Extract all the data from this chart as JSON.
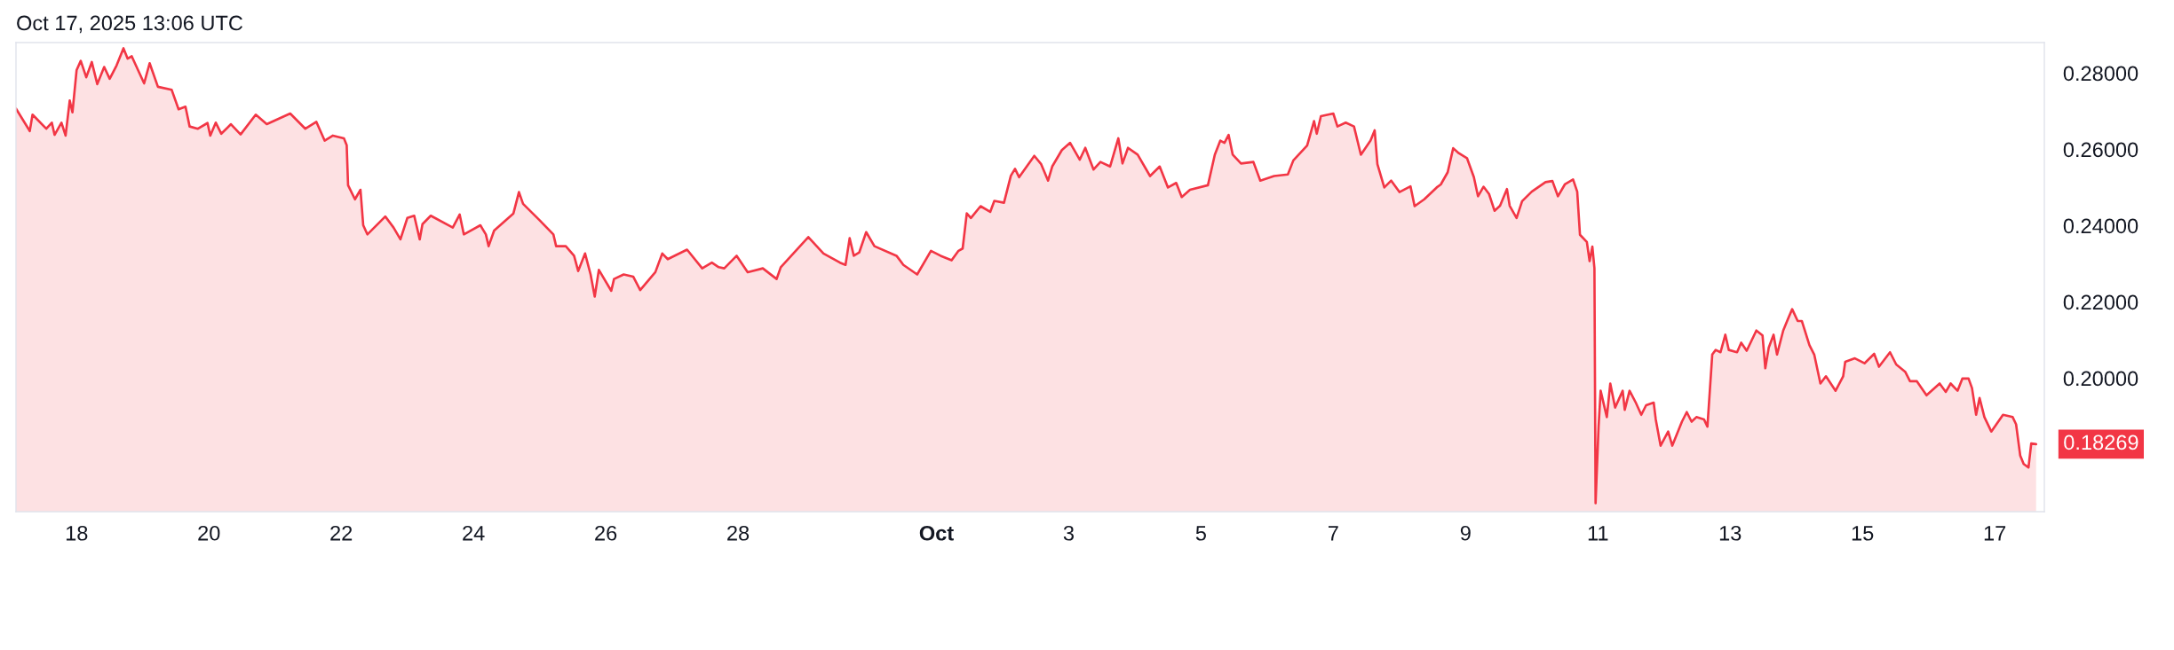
{
  "chart_data": {
    "type": "area",
    "annotations": [
      "Oct 17, 2025 13:06 UTC",
      {
        "text": "0.18269",
        "x": "2025-10-17T15:00",
        "y": 0.18269
      }
    ],
    "xlim": [
      "2025-09-17T02:00",
      "2025-10-17T18:00"
    ],
    "ylim": [
      0.165,
      0.288
    ],
    "xticks": [
      {
        "value": "2025-09-18",
        "label": "18"
      },
      {
        "value": "2025-09-20",
        "label": "20"
      },
      {
        "value": "2025-09-22",
        "label": "22"
      },
      {
        "value": "2025-09-24",
        "label": "24"
      },
      {
        "value": "2025-09-26",
        "label": "26"
      },
      {
        "value": "2025-09-28",
        "label": "28"
      },
      {
        "value": "2025-10-01",
        "label": "Oct"
      },
      {
        "value": "2025-10-03",
        "label": "3"
      },
      {
        "value": "2025-10-05",
        "label": "5"
      },
      {
        "value": "2025-10-07",
        "label": "7"
      },
      {
        "value": "2025-10-09",
        "label": "9"
      },
      {
        "value": "2025-10-11",
        "label": "11"
      },
      {
        "value": "2025-10-13",
        "label": "13"
      },
      {
        "value": "2025-10-15",
        "label": "15"
      },
      {
        "value": "2025-10-17",
        "label": "17"
      }
    ],
    "yticks": [
      {
        "value": 0.2,
        "label": "0.20000"
      },
      {
        "value": 0.22,
        "label": "0.22000"
      },
      {
        "value": 0.24,
        "label": "0.24000"
      },
      {
        "value": 0.26,
        "label": "0.26000"
      },
      {
        "value": 0.28,
        "label": "0.28000"
      }
    ],
    "grid": false,
    "series": [
      {
        "color": "#f23645",
        "x": [
          "2025-09-17T02:00",
          "2025-09-17T07:00",
          "2025-09-17T08:00",
          "2025-09-17T13:00",
          "2025-09-17T15:00",
          "2025-09-17T16:00",
          "2025-09-17T18:30",
          "2025-09-17T20:00",
          "2025-09-17T21:30",
          "2025-09-17T22:30",
          "2025-09-18T00:00",
          "2025-09-18T01:30",
          "2025-09-18T03:30",
          "2025-09-18T05:30",
          "2025-09-18T07:30",
          "2025-09-18T10:00",
          "2025-09-18T12:00",
          "2025-09-18T14:30",
          "2025-09-18T17:00",
          "2025-09-18T18:30",
          "2025-09-18T20:00",
          "2025-09-19T00:30",
          "2025-09-19T02:30",
          "2025-09-19T05:30",
          "2025-09-19T10:30",
          "2025-09-19T13:00",
          "2025-09-19T15:30",
          "2025-09-19T17:00",
          "2025-09-19T20:00",
          "2025-09-19T23:30",
          "2025-09-20T00:30",
          "2025-09-20T02:30",
          "2025-09-20T04:30",
          "2025-09-20T08:00",
          "2025-09-20T11:30",
          "2025-09-20T17:00",
          "2025-09-20T21:00",
          "2025-09-21T05:30",
          "2025-09-21T11:00",
          "2025-09-21T15:00",
          "2025-09-21T18:00",
          "2025-09-21T21:00",
          "2025-09-22T01:00",
          "2025-09-22T02:00",
          "2025-09-22T02:30",
          "2025-09-22T05:00",
          "2025-09-22T07:00",
          "2025-09-22T08:00",
          "2025-09-22T09:30",
          "2025-09-22T12:00",
          "2025-09-22T16:00",
          "2025-09-22T19:00",
          "2025-09-22T21:30",
          "2025-09-23T00:00",
          "2025-09-23T02:30",
          "2025-09-23T04:30",
          "2025-09-23T05:30",
          "2025-09-23T08:30",
          "2025-09-23T16:30",
          "2025-09-23T19:00",
          "2025-09-23T20:30",
          "2025-09-24T02:30",
          "2025-09-24T04:30",
          "2025-09-24T05:30",
          "2025-09-24T07:30",
          "2025-09-24T14:30",
          "2025-09-24T16:30",
          "2025-09-24T18:00",
          "2025-09-25T00:00",
          "2025-09-25T05:00",
          "2025-09-25T06:00",
          "2025-09-25T09:30",
          "2025-09-25T12:30",
          "2025-09-25T14:00",
          "2025-09-25T16:30",
          "2025-09-25T18:30",
          "2025-09-25T20:00",
          "2025-09-25T21:30",
          "2025-09-26T02:00",
          "2025-09-26T03:00",
          "2025-09-26T06:30",
          "2025-09-26T10:00",
          "2025-09-26T12:30",
          "2025-09-26T18:00",
          "2025-09-26T20:30",
          "2025-09-26T22:30",
          "2025-09-27T05:30",
          "2025-09-27T11:00",
          "2025-09-27T14:30",
          "2025-09-27T17:00",
          "2025-09-27T19:00",
          "2025-09-27T23:30",
          "2025-09-28T03:30",
          "2025-09-28T09:00",
          "2025-09-28T14:00",
          "2025-09-28T15:30",
          "2025-09-29T01:30",
          "2025-09-29T07:00",
          "2025-09-29T13:00",
          "2025-09-29T15:00",
          "2025-09-29T16:30",
          "2025-09-29T18:00",
          "2025-09-29T20:00",
          "2025-09-29T22:30",
          "2025-09-30T01:30",
          "2025-09-30T09:30",
          "2025-09-30T12:00",
          "2025-09-30T17:00",
          "2025-09-30T22:00",
          "2025-10-01T01:30",
          "2025-10-01T05:30",
          "2025-10-01T08:00",
          "2025-10-01T09:30",
          "2025-10-01T11:00",
          "2025-10-01T12:30",
          "2025-10-01T16:00",
          "2025-10-01T19:30",
          "2025-10-01T21:00",
          "2025-10-02T00:30",
          "2025-10-02T03:00",
          "2025-10-02T04:30",
          "2025-10-02T06:00",
          "2025-10-02T11:30",
          "2025-10-02T14:00",
          "2025-10-02T16:30",
          "2025-10-02T18:00",
          "2025-10-02T21:30",
          "2025-10-03T00:30",
          "2025-10-03T04:00",
          "2025-10-03T06:00",
          "2025-10-03T09:00",
          "2025-10-03T11:30",
          "2025-10-03T15:00",
          "2025-10-03T18:00",
          "2025-10-03T19:30",
          "2025-10-03T21:30",
          "2025-10-04T01:00",
          "2025-10-04T05:30",
          "2025-10-04T09:00",
          "2025-10-04T12:00",
          "2025-10-04T15:00",
          "2025-10-04T17:00",
          "2025-10-04T20:00",
          "2025-10-05T02:30",
          "2025-10-05T05:00",
          "2025-10-05T07:00",
          "2025-10-05T08:30",
          "2025-10-05T10:00",
          "2025-10-05T11:30",
          "2025-10-05T14:30",
          "2025-10-05T19:00",
          "2025-10-05T21:30",
          "2025-10-06T02:30",
          "2025-10-06T07:30",
          "2025-10-06T09:30",
          "2025-10-06T14:30",
          "2025-10-06T17:00",
          "2025-10-06T18:00",
          "2025-10-06T19:30",
          "2025-10-07T00:00",
          "2025-10-07T01:30",
          "2025-10-07T04:30",
          "2025-10-07T07:30",
          "2025-10-07T10:00",
          "2025-10-07T13:30",
          "2025-10-07T15:00",
          "2025-10-07T16:00",
          "2025-10-07T18:30",
          "2025-10-07T21:00",
          "2025-10-08T00:00",
          "2025-10-08T04:00",
          "2025-10-08T05:30",
          "2025-10-08T09:00",
          "2025-10-08T13:30",
          "2025-10-08T15:00",
          "2025-10-08T17:30",
          "2025-10-08T19:30",
          "2025-10-08T21:30",
          "2025-10-09T00:30",
          "2025-10-09T03:00",
          "2025-10-09T04:30",
          "2025-10-09T06:30",
          "2025-10-09T08:30",
          "2025-10-09T10:30",
          "2025-10-09T12:30",
          "2025-10-09T15:00",
          "2025-10-09T16:00",
          "2025-10-09T18:30",
          "2025-10-09T20:30",
          "2025-10-10T00:00",
          "2025-10-10T05:00",
          "2025-10-10T07:30",
          "2025-10-10T09:30",
          "2025-10-10T12:00",
          "2025-10-10T15:00",
          "2025-10-10T16:30",
          "2025-10-10T17:30",
          "2025-10-10T20:00",
          "2025-10-10T21:00",
          "2025-10-10T22:00",
          "2025-10-10T22:45",
          "2025-10-10T23:10",
          "2025-10-11T00:15",
          "2025-10-11T01:00",
          "2025-10-11T03:15",
          "2025-10-11T04:30",
          "2025-10-11T06:15",
          "2025-10-11T09:00",
          "2025-10-11T09:45",
          "2025-10-11T11:30",
          "2025-10-11T13:45",
          "2025-10-11T15:45",
          "2025-10-11T17:30",
          "2025-10-11T20:15",
          "2025-10-11T21:00",
          "2025-10-11T22:45",
          "2025-10-12T01:30",
          "2025-10-12T03:00",
          "2025-10-12T06:30",
          "2025-10-12T08:15",
          "2025-10-12T10:00",
          "2025-10-12T11:45",
          "2025-10-12T14:30",
          "2025-10-12T15:45",
          "2025-10-12T17:30",
          "2025-10-12T18:45",
          "2025-10-12T20:30",
          "2025-10-12T22:15",
          "2025-10-12T23:30",
          "2025-10-13T02:30",
          "2025-10-13T04:00",
          "2025-10-13T06:00",
          "2025-10-13T09:30",
          "2025-10-13T11:45",
          "2025-10-13T12:45",
          "2025-10-13T14:00",
          "2025-10-13T15:45",
          "2025-10-13T17:00",
          "2025-10-13T19:15",
          "2025-10-13T21:00",
          "2025-10-13T22:30",
          "2025-10-14T00:30",
          "2025-10-14T02:00",
          "2025-10-14T04:45",
          "2025-10-14T06:30",
          "2025-10-14T08:45",
          "2025-10-14T10:45",
          "2025-10-14T14:15",
          "2025-10-14T17:00",
          "2025-10-14T17:45",
          "2025-10-14T21:15",
          "2025-10-15T00:45",
          "2025-10-15T04:15",
          "2025-10-15T06:00",
          "2025-10-15T10:00",
          "2025-10-15T12:15",
          "2025-10-15T15:30",
          "2025-10-15T17:15",
          "2025-10-15T19:45",
          "2025-10-15T23:15",
          "2025-10-16T04:00",
          "2025-10-16T06:15",
          "2025-10-16T08:00",
          "2025-10-16T10:30",
          "2025-10-16T12:15",
          "2025-10-16T14:30",
          "2025-10-16T15:45",
          "2025-10-16T17:15",
          "2025-10-16T18:30",
          "2025-10-16T20:15",
          "2025-10-16T22:45",
          "2025-10-17T03:00",
          "2025-10-17T06:30",
          "2025-10-17T07:45",
          "2025-10-17T09:15",
          "2025-10-17T10:30",
          "2025-10-17T12:15",
          "2025-10-17T13:15",
          "2025-10-17T15:00"
        ],
        "values": [
          0.2707,
          0.2648,
          0.2691,
          0.2654,
          0.267,
          0.2638,
          0.267,
          0.2636,
          0.2728,
          0.2697,
          0.2808,
          0.2832,
          0.2789,
          0.2829,
          0.2771,
          0.2816,
          0.2785,
          0.282,
          0.2865,
          0.2838,
          0.2844,
          0.2773,
          0.2826,
          0.2764,
          0.2756,
          0.2705,
          0.2712,
          0.266,
          0.2654,
          0.2669,
          0.2636,
          0.267,
          0.2641,
          0.2666,
          0.2639,
          0.2691,
          0.2666,
          0.2694,
          0.2654,
          0.2672,
          0.2623,
          0.2636,
          0.2629,
          0.2611,
          0.2506,
          0.2469,
          0.2494,
          0.2401,
          0.2377,
          0.2395,
          0.2424,
          0.2395,
          0.2364,
          0.242,
          0.2426,
          0.2364,
          0.2404,
          0.2426,
          0.2395,
          0.2429,
          0.2377,
          0.2401,
          0.2377,
          0.2346,
          0.2387,
          0.2432,
          0.2488,
          0.2457,
          0.2414,
          0.2377,
          0.2346,
          0.2346,
          0.2321,
          0.2281,
          0.2327,
          0.2272,
          0.2214,
          0.2284,
          0.2229,
          0.226,
          0.2272,
          0.2266,
          0.2231,
          0.2278,
          0.2327,
          0.2312,
          0.2337,
          0.2288,
          0.2303,
          0.2291,
          0.2288,
          0.2321,
          0.2278,
          0.2288,
          0.226,
          0.2291,
          0.237,
          0.2327,
          0.2303,
          0.2297,
          0.2367,
          0.2321,
          0.233,
          0.2383,
          0.2346,
          0.2321,
          0.2297,
          0.2272,
          0.2334,
          0.2321,
          0.2309,
          0.2334,
          0.234,
          0.2432,
          0.242,
          0.2451,
          0.2436,
          0.2465,
          0.246,
          0.2531,
          0.2549,
          0.2527,
          0.2583,
          0.2561,
          0.2518,
          0.2555,
          0.2598,
          0.2617,
          0.2573,
          0.2604,
          0.2547,
          0.2567,
          0.2555,
          0.2629,
          0.2563,
          0.2604,
          0.2586,
          0.253,
          0.2555,
          0.25,
          0.2512,
          0.2475,
          0.2494,
          0.2506,
          0.2586,
          0.2623,
          0.2617,
          0.2638,
          0.2586,
          0.2563,
          0.2567,
          0.2518,
          0.253,
          0.2534,
          0.2571,
          0.261,
          0.2674,
          0.2641,
          0.2687,
          0.2694,
          0.266,
          0.267,
          0.266,
          0.2586,
          0.2623,
          0.265,
          0.2561,
          0.25,
          0.2518,
          0.2488,
          0.2503,
          0.2451,
          0.2469,
          0.25,
          0.2508,
          0.254,
          0.2603,
          0.259,
          0.2577,
          0.2527,
          0.2477,
          0.2502,
          0.2483,
          0.2439,
          0.2452,
          0.2496,
          0.2452,
          0.242,
          0.2464,
          0.2489,
          0.2514,
          0.2517,
          0.2477,
          0.2508,
          0.2521,
          0.2489,
          0.2376,
          0.2357,
          0.2307,
          0.2345,
          0.2288,
          0.1672,
          0.1873,
          0.1967,
          0.1898,
          0.1986,
          0.1923,
          0.1967,
          0.1917,
          0.1967,
          0.1936,
          0.1904,
          0.1929,
          0.1936,
          0.1892,
          0.1823,
          0.186,
          0.1823,
          0.1886,
          0.1911,
          0.1886,
          0.1898,
          0.1892,
          0.1873,
          0.2062,
          0.2074,
          0.2068,
          0.2114,
          0.2074,
          0.2068,
          0.2093,
          0.2072,
          0.2125,
          0.2112,
          0.2026,
          0.208,
          0.2114,
          0.2062,
          0.2125,
          0.2156,
          0.2181,
          0.215,
          0.215,
          0.2087,
          0.2062,
          0.1986,
          0.2005,
          0.1967,
          0.2005,
          0.2043,
          0.2052,
          0.2039,
          0.2064,
          0.203,
          0.2068,
          0.2036,
          0.2017,
          0.1992,
          0.1992,
          0.1955,
          0.1986,
          0.1964,
          0.1986,
          0.1967,
          0.1999,
          0.1999,
          0.1974,
          0.1904,
          0.1948,
          0.1898,
          0.186,
          0.1904,
          0.1898,
          0.1879,
          0.1797,
          0.1775,
          0.1766,
          0.1829,
          0.18269
        ]
      }
    ]
  }
}
